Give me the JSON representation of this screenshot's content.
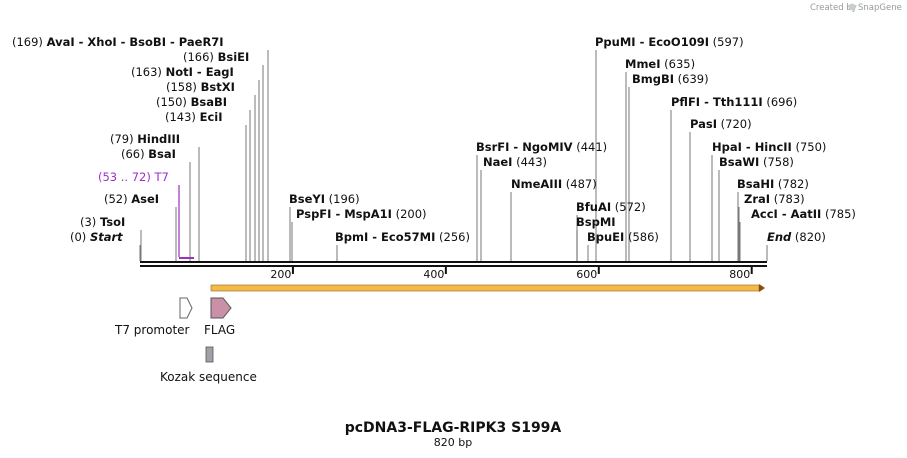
{
  "credit": {
    "text": "Created by",
    "brand": "SnapGene",
    "brand_color": "#9aa0a6",
    "logo_icon": "snapgene-logo-icon"
  },
  "plasmid": {
    "name": "pcDNA3-FLAG-RIPK3 S199A",
    "size_label": "820 bp",
    "length": 820
  },
  "ruler": {
    "ticks": [
      200,
      400,
      600,
      800
    ],
    "labels": [
      "200",
      "400",
      "600",
      "800"
    ]
  },
  "sites": [
    {
      "name": "AvaI",
      "extra": "XhoI",
      "extra2": "BsoBI",
      "extra3": "PaeR7I",
      "pos_label": "(169)",
      "pos": 169,
      "side": "left",
      "italic": false
    },
    {
      "name": "BsiEI",
      "pos_label": "(166)",
      "pos": 166,
      "side": "left"
    },
    {
      "name": "NotI",
      "extra": "EagI",
      "pos_label": "(163)",
      "pos": 163,
      "side": "left"
    },
    {
      "name": "BstXI",
      "pos_label": "(158)",
      "pos": 158,
      "side": "left"
    },
    {
      "name": "BsaBI",
      "pos_label": "(150)",
      "pos": 150,
      "side": "left"
    },
    {
      "name": "EciI",
      "pos_label": "(143)",
      "pos": 143,
      "side": "left"
    },
    {
      "name": "HindIII",
      "pos_label": "(79)",
      "pos": 79,
      "side": "left"
    },
    {
      "name": "BsaI",
      "pos_label": "(66)",
      "pos": 66,
      "side": "left"
    },
    {
      "name": "T7",
      "pos_label": "(53 .. 72)",
      "pos": 53,
      "side": "left",
      "primer": true
    },
    {
      "name": "AseI",
      "pos_label": "(52)",
      "pos": 52,
      "side": "left"
    },
    {
      "name": "TsoI",
      "pos_label": "(3)",
      "pos": 3,
      "side": "left"
    },
    {
      "name": "Start",
      "pos_label": "(0)",
      "pos": 0,
      "side": "left",
      "italic": true
    },
    {
      "name": "BseYI",
      "pos_label": "(196)",
      "pos": 196,
      "side": "right"
    },
    {
      "name": "PspFI",
      "extra": "MspA1I",
      "pos_label": "(200)",
      "pos": 200,
      "side": "right"
    },
    {
      "name": "BpmI",
      "extra": "Eco57MI",
      "pos_label": "(256)",
      "pos": 256,
      "side": "right"
    },
    {
      "name": "BsrFI",
      "extra": "NgoMIV",
      "pos_label": "(441)",
      "pos": 441,
      "side": "right"
    },
    {
      "name": "NaeI",
      "pos_label": "(443)",
      "pos": 443,
      "side": "right"
    },
    {
      "name": "NmeAIII",
      "pos_label": "(487)",
      "pos": 487,
      "side": "right"
    },
    {
      "name": "BfuAI",
      "pos_label": "(572)",
      "pos": 572,
      "side": "right"
    },
    {
      "name": "BspMI",
      "pos_label": "",
      "pos": 572,
      "side": "right"
    },
    {
      "name": "BpuEI",
      "pos_label": "(586)",
      "pos": 586,
      "side": "right"
    },
    {
      "name": "PpuMI",
      "extra": "EcoO109I",
      "pos_label": "(597)",
      "pos": 597,
      "side": "right"
    },
    {
      "name": "MmeI",
      "pos_label": "(635)",
      "pos": 635,
      "side": "right"
    },
    {
      "name": "BmgBI",
      "pos_label": "(639)",
      "pos": 639,
      "side": "right"
    },
    {
      "name": "PflFI",
      "extra": "Tth111I",
      "pos_label": "(696)",
      "pos": 696,
      "side": "right"
    },
    {
      "name": "PasI",
      "pos_label": "(720)",
      "pos": 720,
      "side": "right"
    },
    {
      "name": "HpaI",
      "extra": "HincII",
      "pos_label": "(750)",
      "pos": 750,
      "side": "right"
    },
    {
      "name": "BsaWI",
      "pos_label": "(758)",
      "pos": 758,
      "side": "right"
    },
    {
      "name": "BsaHI",
      "pos_label": "(782)",
      "pos": 782,
      "side": "right"
    },
    {
      "name": "ZraI",
      "pos_label": "(783)",
      "pos": 783,
      "side": "right"
    },
    {
      "name": "AccI",
      "extra": "AatII",
      "pos_label": "(785)",
      "pos": 785,
      "side": "right"
    },
    {
      "name": "End",
      "pos_label": "(820)",
      "pos": 820,
      "side": "right",
      "italic": true
    }
  ],
  "features": [
    {
      "name": "T7 promoter",
      "icon": "arrow-outline-icon",
      "color": "#ffffff"
    },
    {
      "name": "FLAG",
      "icon": "arrow-filled-icon",
      "color": "#c990a8"
    },
    {
      "name": "Kozak sequence",
      "icon": "box-icon",
      "color": "#a0a0a8"
    }
  ],
  "orf": {
    "color": "#f5b94a",
    "direction": "forward"
  },
  "colors": {
    "primer": "#9b30c8",
    "backbone": "#111111"
  }
}
